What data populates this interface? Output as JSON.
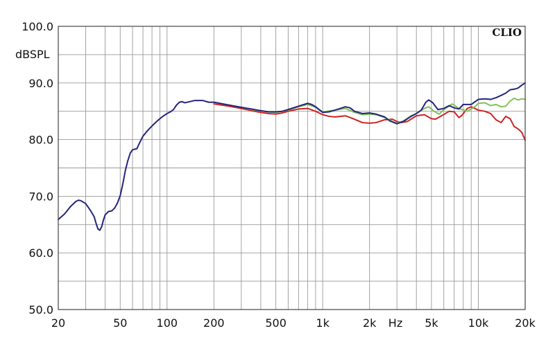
{
  "chart_data": {
    "type": "line",
    "brand": "CLIO",
    "ylabel": "dBSPL",
    "xlabel": "Hz",
    "x_scale": "log",
    "xlim": [
      20,
      20000
    ],
    "ylim": [
      50,
      100
    ],
    "grid": true,
    "y_ticks": [
      {
        "value": 100,
        "label": "100.0"
      },
      {
        "value": 90,
        "label": "90.0"
      },
      {
        "value": 80,
        "label": "80.0"
      },
      {
        "value": 70,
        "label": "70.0"
      },
      {
        "value": 60,
        "label": "60.0"
      },
      {
        "value": 50,
        "label": "50.0"
      }
    ],
    "x_ticks": [
      {
        "value": 20,
        "label": "20"
      },
      {
        "value": 50,
        "label": "50"
      },
      {
        "value": 100,
        "label": "100"
      },
      {
        "value": 200,
        "label": "200"
      },
      {
        "value": 500,
        "label": "500"
      },
      {
        "value": 1000,
        "label": "1k"
      },
      {
        "value": 2000,
        "label": "2k"
      },
      {
        "value": 5000,
        "label": "5k"
      },
      {
        "value": 10000,
        "label": "10k"
      },
      {
        "value": 20000,
        "label": "20k"
      }
    ],
    "x_grid": [
      20,
      30,
      40,
      50,
      60,
      70,
      80,
      90,
      100,
      200,
      300,
      400,
      500,
      600,
      700,
      800,
      900,
      1000,
      2000,
      3000,
      4000,
      5000,
      6000,
      7000,
      8000,
      9000,
      10000,
      20000
    ],
    "series": [
      {
        "color": "#cc2222",
        "points": [
          [
            200,
            86.3
          ],
          [
            250,
            85.9
          ],
          [
            300,
            85.5
          ],
          [
            350,
            85.1
          ],
          [
            400,
            84.8
          ],
          [
            450,
            84.6
          ],
          [
            500,
            84.5
          ],
          [
            550,
            84.7
          ],
          [
            600,
            85.0
          ],
          [
            700,
            85.4
          ],
          [
            800,
            85.5
          ],
          [
            900,
            85.0
          ],
          [
            1000,
            84.4
          ],
          [
            1100,
            84.1
          ],
          [
            1200,
            84.0
          ],
          [
            1400,
            84.2
          ],
          [
            1600,
            83.6
          ],
          [
            1800,
            83.0
          ],
          [
            2000,
            82.9
          ],
          [
            2200,
            83.0
          ],
          [
            2500,
            83.5
          ],
          [
            2800,
            83.6
          ],
          [
            3000,
            83.2
          ],
          [
            3200,
            83.0
          ],
          [
            3500,
            83.2
          ],
          [
            4000,
            84.2
          ],
          [
            4500,
            84.4
          ],
          [
            5000,
            83.7
          ],
          [
            5300,
            83.6
          ],
          [
            5800,
            84.2
          ],
          [
            6500,
            85.0
          ],
          [
            7000,
            84.9
          ],
          [
            7500,
            83.9
          ],
          [
            7800,
            84.2
          ],
          [
            8500,
            85.5
          ],
          [
            9000,
            85.8
          ],
          [
            10000,
            85.2
          ],
          [
            11000,
            85.0
          ],
          [
            12000,
            84.6
          ],
          [
            13000,
            83.5
          ],
          [
            14000,
            83.0
          ],
          [
            15000,
            84.1
          ],
          [
            16000,
            83.7
          ],
          [
            17000,
            82.3
          ],
          [
            18000,
            81.9
          ],
          [
            19000,
            81.3
          ],
          [
            20000,
            79.9
          ]
        ]
      },
      {
        "color": "#7fc25a",
        "points": [
          [
            200,
            86.6
          ],
          [
            250,
            86.1
          ],
          [
            300,
            85.7
          ],
          [
            350,
            85.3
          ],
          [
            400,
            85.1
          ],
          [
            450,
            84.9
          ],
          [
            500,
            84.8
          ],
          [
            600,
            85.2
          ],
          [
            700,
            85.8
          ],
          [
            800,
            86.2
          ],
          [
            900,
            85.7
          ],
          [
            1000,
            84.9
          ],
          [
            1200,
            85.2
          ],
          [
            1400,
            85.5
          ],
          [
            1600,
            84.8
          ],
          [
            1800,
            84.4
          ],
          [
            2000,
            84.5
          ],
          [
            2200,
            84.4
          ],
          [
            2500,
            83.9
          ],
          [
            2800,
            83.2
          ],
          [
            3000,
            82.9
          ],
          [
            3300,
            83.3
          ],
          [
            3700,
            84.2
          ],
          [
            4000,
            84.6
          ],
          [
            4500,
            85.5
          ],
          [
            4800,
            85.8
          ],
          [
            5200,
            85.0
          ],
          [
            5600,
            84.5
          ],
          [
            6000,
            85.3
          ],
          [
            6800,
            86.3
          ],
          [
            7500,
            85.5
          ],
          [
            8500,
            85.0
          ],
          [
            9500,
            85.8
          ],
          [
            10000,
            86.4
          ],
          [
            11000,
            86.5
          ],
          [
            12000,
            86.0
          ],
          [
            13000,
            86.2
          ],
          [
            14000,
            85.8
          ],
          [
            15000,
            85.9
          ],
          [
            16000,
            86.8
          ],
          [
            17000,
            87.3
          ],
          [
            18000,
            87.0
          ],
          [
            19000,
            87.2
          ],
          [
            20000,
            87.1
          ]
        ]
      },
      {
        "color": "#23237a",
        "points": [
          [
            20,
            65.9
          ],
          [
            22,
            66.9
          ],
          [
            24,
            68.2
          ],
          [
            26,
            69.1
          ],
          [
            27,
            69.3
          ],
          [
            28,
            69.2
          ],
          [
            30,
            68.7
          ],
          [
            32,
            67.6
          ],
          [
            34,
            66.4
          ],
          [
            35,
            65.2
          ],
          [
            36,
            64.2
          ],
          [
            37,
            64.0
          ],
          [
            38,
            64.6
          ],
          [
            39,
            65.8
          ],
          [
            40,
            66.7
          ],
          [
            42,
            67.3
          ],
          [
            44,
            67.4
          ],
          [
            46,
            67.9
          ],
          [
            48,
            68.8
          ],
          [
            50,
            70.1
          ],
          [
            52,
            72.2
          ],
          [
            54,
            74.6
          ],
          [
            56,
            76.3
          ],
          [
            58,
            77.6
          ],
          [
            60,
            78.2
          ],
          [
            62,
            78.3
          ],
          [
            64,
            78.4
          ],
          [
            66,
            79.2
          ],
          [
            70,
            80.6
          ],
          [
            75,
            81.6
          ],
          [
            80,
            82.4
          ],
          [
            85,
            83.1
          ],
          [
            90,
            83.7
          ],
          [
            95,
            84.2
          ],
          [
            100,
            84.6
          ],
          [
            105,
            84.9
          ],
          [
            110,
            85.3
          ],
          [
            115,
            86.1
          ],
          [
            120,
            86.6
          ],
          [
            125,
            86.7
          ],
          [
            130,
            86.5
          ],
          [
            140,
            86.7
          ],
          [
            150,
            86.9
          ],
          [
            170,
            86.9
          ],
          [
            185,
            86.6
          ],
          [
            200,
            86.6
          ],
          [
            250,
            86.1
          ],
          [
            300,
            85.7
          ],
          [
            350,
            85.4
          ],
          [
            400,
            85.1
          ],
          [
            450,
            84.9
          ],
          [
            500,
            84.9
          ],
          [
            550,
            85.0
          ],
          [
            600,
            85.3
          ],
          [
            700,
            85.9
          ],
          [
            800,
            86.4
          ],
          [
            850,
            86.2
          ],
          [
            900,
            85.8
          ],
          [
            1000,
            84.8
          ],
          [
            1100,
            84.9
          ],
          [
            1200,
            85.2
          ],
          [
            1400,
            85.8
          ],
          [
            1500,
            85.6
          ],
          [
            1600,
            85.0
          ],
          [
            1800,
            84.6
          ],
          [
            2000,
            84.7
          ],
          [
            2200,
            84.5
          ],
          [
            2500,
            84.0
          ],
          [
            2700,
            83.3
          ],
          [
            3000,
            82.8
          ],
          [
            3300,
            83.2
          ],
          [
            3700,
            84.1
          ],
          [
            4000,
            84.6
          ],
          [
            4300,
            85.2
          ],
          [
            4600,
            86.6
          ],
          [
            4800,
            87.0
          ],
          [
            5100,
            86.5
          ],
          [
            5500,
            85.3
          ],
          [
            6000,
            85.5
          ],
          [
            6500,
            86.0
          ],
          [
            7000,
            85.6
          ],
          [
            7500,
            85.4
          ],
          [
            8000,
            86.2
          ],
          [
            9000,
            86.2
          ],
          [
            10000,
            87.1
          ],
          [
            11000,
            87.2
          ],
          [
            12000,
            87.1
          ],
          [
            13000,
            87.4
          ],
          [
            14000,
            87.8
          ],
          [
            15000,
            88.2
          ],
          [
            16000,
            88.8
          ],
          [
            17000,
            88.9
          ],
          [
            18000,
            89.1
          ],
          [
            19000,
            89.6
          ],
          [
            20000,
            90.0
          ]
        ]
      }
    ]
  }
}
